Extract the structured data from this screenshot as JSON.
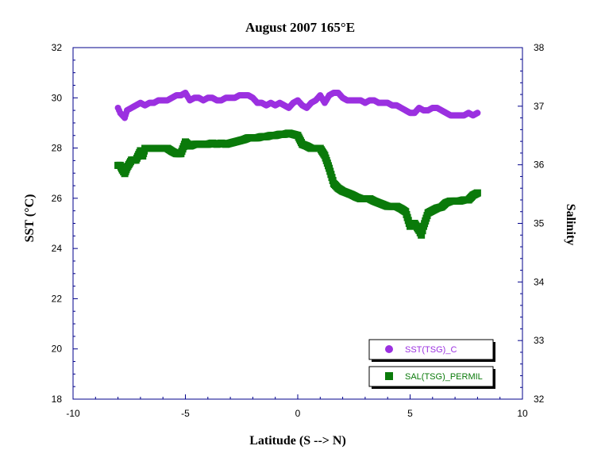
{
  "chart_data": {
    "type": "scatter",
    "title": "August 2007 165°E",
    "xlabel": "Latitude (S --> N)",
    "ylabel": "SST (°C)",
    "y2label": "Salinity",
    "xlim": [
      -10,
      10
    ],
    "ylim": [
      18,
      32
    ],
    "y2lim": [
      32,
      38
    ],
    "x_ticks": [
      -10,
      -5,
      0,
      5,
      10
    ],
    "y_ticks": [
      18,
      20,
      22,
      24,
      26,
      28,
      30,
      32
    ],
    "y2_ticks": [
      32,
      33,
      34,
      35,
      36,
      37,
      38
    ],
    "grid": false,
    "legend_position": "bottom-right",
    "colors": {
      "axis": "#00008b",
      "sst": "#9b30e0",
      "sal": "#0a7a0a"
    },
    "series": [
      {
        "name": "SST(TSG)_C",
        "axis": "left",
        "marker": "circle",
        "color": "#9b30e0",
        "x": [
          -8.0,
          -7.9,
          -7.8,
          -7.7,
          -7.6,
          -7.4,
          -7.2,
          -7.0,
          -6.8,
          -6.6,
          -6.4,
          -6.2,
          -6.0,
          -5.8,
          -5.6,
          -5.4,
          -5.2,
          -5.0,
          -4.8,
          -4.6,
          -4.4,
          -4.2,
          -4.0,
          -3.8,
          -3.6,
          -3.4,
          -3.2,
          -3.0,
          -2.8,
          -2.6,
          -2.4,
          -2.2,
          -2.0,
          -1.8,
          -1.6,
          -1.4,
          -1.2,
          -1.0,
          -0.8,
          -0.6,
          -0.4,
          -0.2,
          0.0,
          0.2,
          0.4,
          0.6,
          0.8,
          1.0,
          1.2,
          1.4,
          1.6,
          1.8,
          2.0,
          2.2,
          2.4,
          2.6,
          2.8,
          3.0,
          3.2,
          3.4,
          3.6,
          3.8,
          4.0,
          4.2,
          4.4,
          4.6,
          4.8,
          5.0,
          5.2,
          5.4,
          5.6,
          5.8,
          6.0,
          6.2,
          6.4,
          6.6,
          6.8,
          7.0,
          7.2,
          7.4,
          7.6,
          7.8,
          8.0
        ],
        "y": [
          29.6,
          29.4,
          29.3,
          29.2,
          29.5,
          29.6,
          29.7,
          29.8,
          29.7,
          29.8,
          29.8,
          29.9,
          29.9,
          29.9,
          30.0,
          30.1,
          30.1,
          30.2,
          29.9,
          30.0,
          30.0,
          29.9,
          30.0,
          30.0,
          29.9,
          29.9,
          30.0,
          30.0,
          30.0,
          30.1,
          30.1,
          30.1,
          30.0,
          29.8,
          29.8,
          29.7,
          29.8,
          29.7,
          29.8,
          29.7,
          29.6,
          29.8,
          29.9,
          29.7,
          29.6,
          29.8,
          29.9,
          30.1,
          29.8,
          30.1,
          30.2,
          30.2,
          30.0,
          29.9,
          29.9,
          29.9,
          29.9,
          29.8,
          29.9,
          29.9,
          29.8,
          29.8,
          29.8,
          29.7,
          29.7,
          29.6,
          29.5,
          29.4,
          29.4,
          29.6,
          29.5,
          29.5,
          29.6,
          29.6,
          29.5,
          29.4,
          29.3,
          29.3,
          29.3,
          29.3,
          29.4,
          29.3,
          29.4
        ]
      },
      {
        "name": "SAL(TSG)_PERMIL",
        "axis": "right",
        "marker": "square",
        "color": "#0a7a0a",
        "x": [
          -8.0,
          -7.9,
          -7.8,
          -7.7,
          -7.6,
          -7.4,
          -7.2,
          -7.0,
          -6.9,
          -6.8,
          -6.6,
          -6.4,
          -6.2,
          -6.0,
          -5.8,
          -5.6,
          -5.4,
          -5.2,
          -5.0,
          -4.8,
          -4.6,
          -4.4,
          -4.2,
          -4.0,
          -3.8,
          -3.6,
          -3.4,
          -3.2,
          -3.0,
          -2.8,
          -2.6,
          -2.4,
          -2.2,
          -2.0,
          -1.8,
          -1.6,
          -1.4,
          -1.2,
          -1.0,
          -0.8,
          -0.6,
          -0.4,
          -0.2,
          0.0,
          0.2,
          0.4,
          0.6,
          0.8,
          1.0,
          1.2,
          1.4,
          1.6,
          1.8,
          2.0,
          2.2,
          2.4,
          2.6,
          2.8,
          3.0,
          3.2,
          3.4,
          3.6,
          3.8,
          4.0,
          4.2,
          4.4,
          4.6,
          4.8,
          5.0,
          5.2,
          5.4,
          5.5,
          5.6,
          5.8,
          6.0,
          6.2,
          6.4,
          6.6,
          6.8,
          7.0,
          7.2,
          7.4,
          7.6,
          7.8,
          8.0
        ],
        "y": [
          35.99,
          35.99,
          35.91,
          35.85,
          35.95,
          36.08,
          36.08,
          36.24,
          36.15,
          36.28,
          36.28,
          36.28,
          36.28,
          36.28,
          36.28,
          36.23,
          36.19,
          36.19,
          36.39,
          36.32,
          36.35,
          36.35,
          36.35,
          36.35,
          36.37,
          36.35,
          36.37,
          36.35,
          36.37,
          36.39,
          36.41,
          36.43,
          36.46,
          36.46,
          36.46,
          36.48,
          36.48,
          36.5,
          36.5,
          36.52,
          36.52,
          36.54,
          36.52,
          36.5,
          36.35,
          36.32,
          36.28,
          36.28,
          36.28,
          36.16,
          35.94,
          35.68,
          35.6,
          35.55,
          35.52,
          35.49,
          35.45,
          35.42,
          35.42,
          35.42,
          35.38,
          35.35,
          35.32,
          35.29,
          35.29,
          35.29,
          35.25,
          35.2,
          34.95,
          35.0,
          34.88,
          34.8,
          34.95,
          35.18,
          35.22,
          35.26,
          35.28,
          35.35,
          35.38,
          35.38,
          35.38,
          35.4,
          35.4,
          35.48,
          35.52
        ]
      }
    ]
  }
}
